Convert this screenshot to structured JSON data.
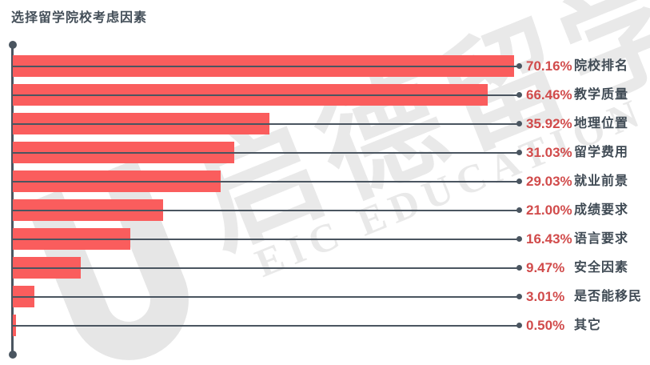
{
  "title": "选择留学院校考虑因素",
  "watermark": {
    "cn": "启德留学",
    "en": "EIC EDUCATION"
  },
  "colors": {
    "bar": "#FA5D5D",
    "axis": "#4A5560",
    "value_text": "#D14B4B",
    "category_text": "#3F4A54",
    "title_text": "#434E58",
    "watermark": "#E9E9E9",
    "background": "#FFFFFF"
  },
  "chart_data": {
    "type": "bar",
    "orientation": "horizontal",
    "title": "选择留学院校考虑因素",
    "unit": "%",
    "xlim": [
      0,
      72
    ],
    "grid": false,
    "legend": false,
    "label_position": "right-of-leader-line",
    "categories": [
      "院校排名",
      "教学质量",
      "地理位置",
      "留学费用",
      "就业前景",
      "成绩要求",
      "语言要求",
      "安全因素",
      "是否能移民",
      "其它"
    ],
    "values": [
      70.16,
      66.46,
      35.92,
      31.03,
      29.03,
      21.0,
      16.43,
      9.47,
      3.01,
      0.5
    ],
    "value_labels": [
      "70.16%",
      "66.46%",
      "35.92%",
      "31.03%",
      "29.03%",
      "21.00%",
      "16.43%",
      "9.47%",
      "3.01%",
      "0.50%"
    ]
  }
}
